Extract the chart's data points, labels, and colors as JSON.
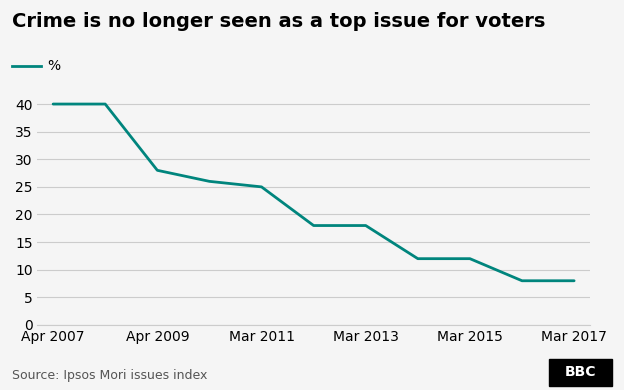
{
  "title": "Crime is no longer seen as a top issue for voters",
  "legend_label": "%",
  "line_color": "#00857d",
  "line_width": 2.0,
  "x_labels": [
    "Apr 2007",
    "Apr 2009",
    "Mar 2011",
    "Mar 2013",
    "Mar 2015",
    "Mar 2017"
  ],
  "x_values": [
    0,
    2,
    4,
    6,
    8,
    10
  ],
  "y_values": [
    40,
    40,
    28,
    26,
    25,
    18,
    18,
    12,
    12,
    8,
    8
  ],
  "x_data": [
    0,
    1,
    2,
    3,
    4,
    5,
    6,
    7,
    8,
    9,
    10
  ],
  "x_ticks": [
    0,
    2,
    4,
    6,
    8,
    10
  ],
  "ylim": [
    0,
    42
  ],
  "yticks": [
    0,
    5,
    10,
    15,
    20,
    25,
    30,
    35,
    40
  ],
  "background_color": "#f5f5f5",
  "grid_color": "#cccccc",
  "source_text": "Source: Ipsos Mori issues index",
  "bbc_text": "BBC",
  "title_fontsize": 14,
  "label_fontsize": 10,
  "tick_fontsize": 10,
  "source_fontsize": 9
}
